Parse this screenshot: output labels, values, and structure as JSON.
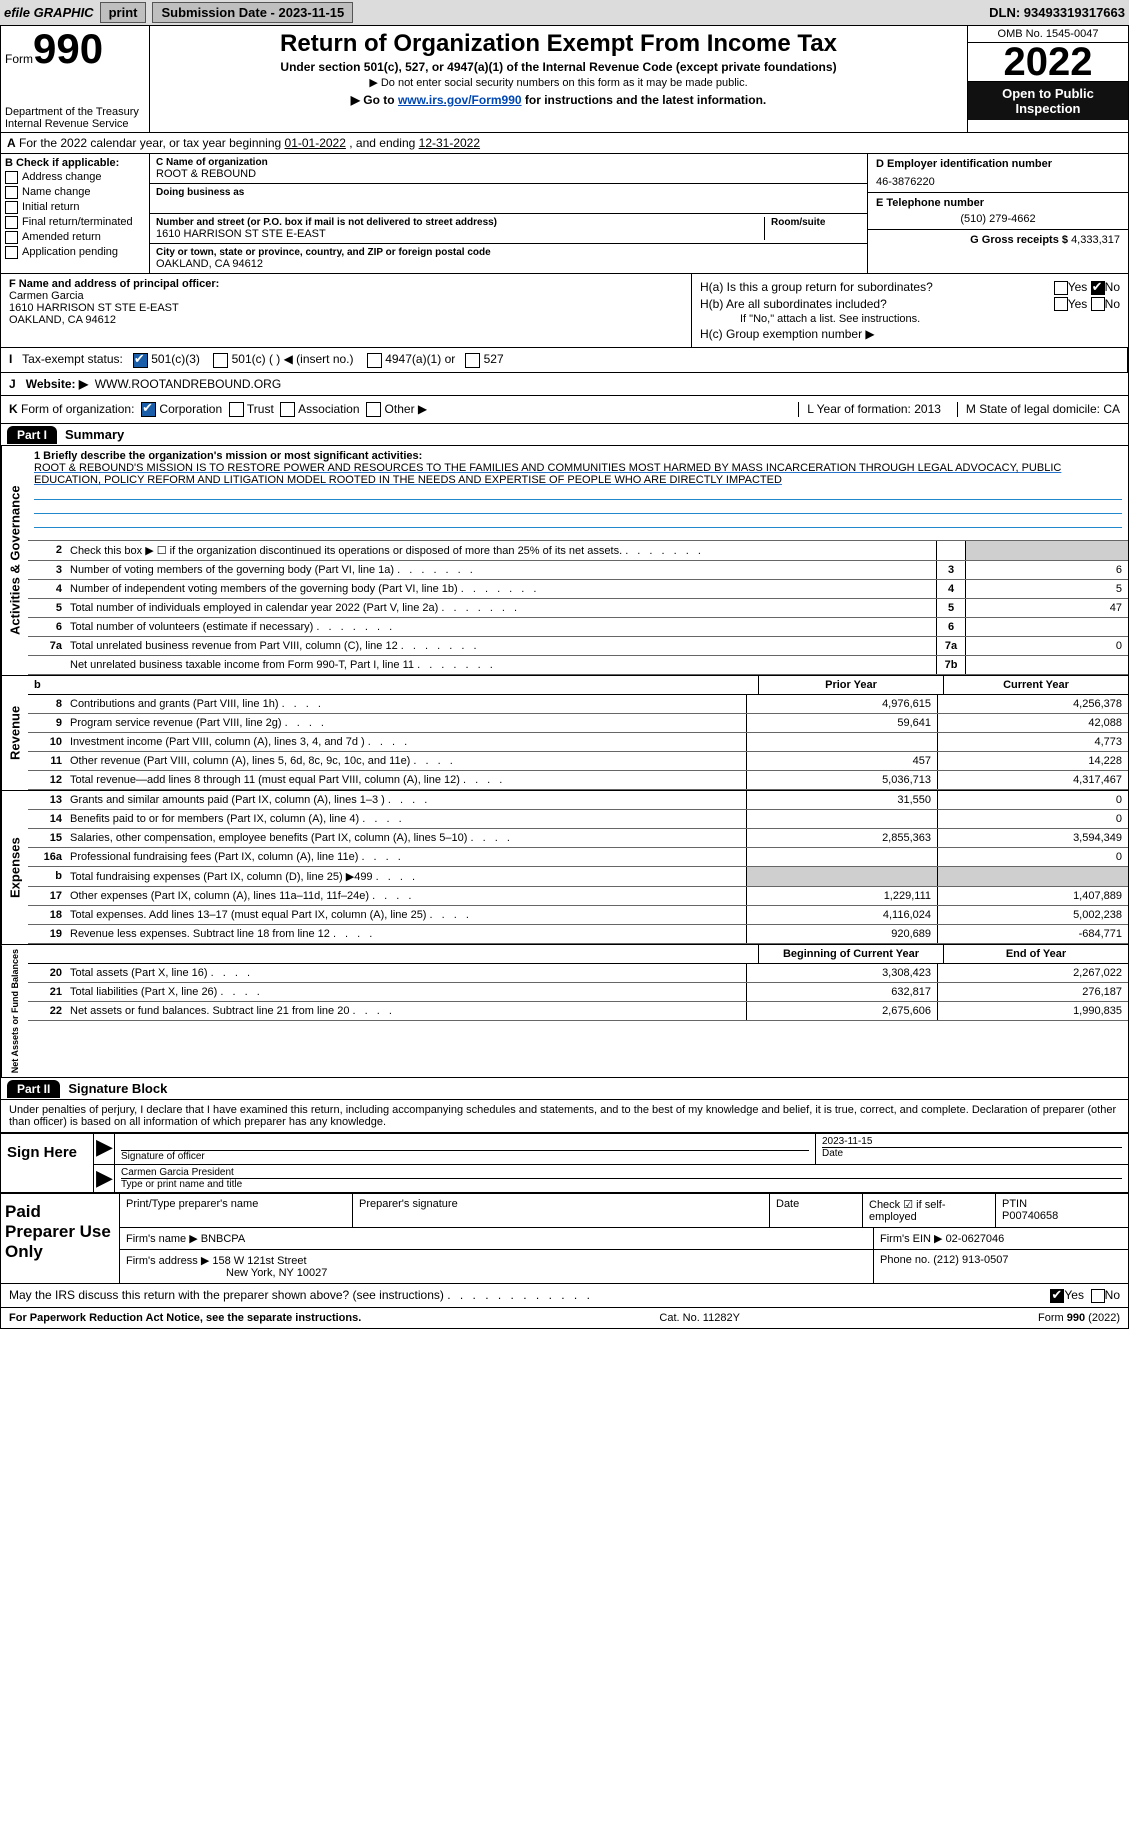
{
  "topbar": {
    "efile": "efile GRAPHIC",
    "print": "print",
    "subdate_label": "Submission Date - 2023-11-15",
    "dln": "DLN: 93493319317663"
  },
  "header": {
    "form_word": "Form",
    "form_no": "990",
    "dept": "Department of the Treasury",
    "irs": "Internal Revenue Service",
    "title": "Return of Organization Exempt From Income Tax",
    "sub": "Under section 501(c), 527, or 4947(a)(1) of the Internal Revenue Code (except private foundations)",
    "sub2": "Do not enter social security numbers on this form as it may be made public.",
    "sub3_pre": "Go to ",
    "sub3_link": "www.irs.gov/Form990",
    "sub3_post": " for instructions and the latest information.",
    "omb": "OMB No. 1545-0047",
    "year": "2022",
    "open": "Open to Public Inspection"
  },
  "rowA": {
    "text_pre": "For the 2022 calendar year, or tax year beginning ",
    "begin": "01-01-2022",
    "mid": " , and ending ",
    "end": "12-31-2022",
    "label": "A"
  },
  "colB": {
    "hdr": "B Check if applicable:",
    "items": [
      "Address change",
      "Name change",
      "Initial return",
      "Final return/terminated",
      "Amended return",
      "Application pending"
    ]
  },
  "colC": {
    "name_lbl": "C Name of organization",
    "name": "ROOT & REBOUND",
    "dba_lbl": "Doing business as",
    "addr_lbl": "Number and street (or P.O. box if mail is not delivered to street address)",
    "room_lbl": "Room/suite",
    "addr": "1610 HARRISON ST STE E-EAST",
    "city_lbl": "City or town, state or province, country, and ZIP or foreign postal code",
    "city": "OAKLAND, CA  94612"
  },
  "colDEF": {
    "d_lbl": "D Employer identification number",
    "d_val": "46-3876220",
    "e_lbl": "E Telephone number",
    "e_val": "(510) 279-4662",
    "g_lbl": "G Gross receipts $",
    "g_val": "4,333,317"
  },
  "rowF": {
    "lbl": "F Name and address of principal officer:",
    "name": "Carmen Garcia",
    "addr1": "1610 HARRISON ST STE E-EAST",
    "addr2": "OAKLAND, CA  94612"
  },
  "rowH": {
    "a": "H(a)  Is this a group return for subordinates?",
    "b": "H(b)  Are all subordinates included?",
    "bnote": "If \"No,\" attach a list. See instructions.",
    "c": "H(c)  Group exemption number ▶",
    "yes": "Yes",
    "no": "No"
  },
  "rowI": {
    "lbl": "Tax-exempt status:",
    "opts": [
      "501(c)(3)",
      "501(c) (   ) ◀ (insert no.)",
      "4947(a)(1) or",
      "527"
    ],
    "i": "I"
  },
  "rowJ": {
    "lbl": "Website: ▶",
    "val": "WWW.ROOTANDREBOUND.ORG",
    "j": "J"
  },
  "rowK": {
    "k": "K",
    "lbl": "Form of organization:",
    "opts": [
      "Corporation",
      "Trust",
      "Association",
      "Other ▶"
    ],
    "l": "L Year of formation: 2013",
    "m": "M State of legal domicile: CA"
  },
  "partI": {
    "tag": "Part I",
    "label": "Summary"
  },
  "mission": {
    "q": "1  Briefly describe the organization's mission or most significant activities:",
    "text": "ROOT & REBOUND'S MISSION IS TO RESTORE POWER AND RESOURCES TO THE FAMILIES AND COMMUNITIES MOST HARMED BY MASS INCARCERATION THROUGH LEGAL ADVOCACY, PUBLIC EDUCATION, POLICY REFORM AND LITIGATION MODEL ROOTED IN THE NEEDS AND EXPERTISE OF PEOPLE WHO ARE DIRECTLY IMPACTED"
  },
  "govRows": [
    {
      "n": "2",
      "t": "Check this box ▶ ☐ if the organization discontinued its operations or disposed of more than 25% of its net assets.",
      "cell": "",
      "box": ""
    },
    {
      "n": "3",
      "t": "Number of voting members of the governing body (Part VI, line 1a)",
      "cell": "3",
      "v": "6"
    },
    {
      "n": "4",
      "t": "Number of independent voting members of the governing body (Part VI, line 1b)",
      "cell": "4",
      "v": "5"
    },
    {
      "n": "5",
      "t": "Total number of individuals employed in calendar year 2022 (Part V, line 2a)",
      "cell": "5",
      "v": "47"
    },
    {
      "n": "6",
      "t": "Total number of volunteers (estimate if necessary)",
      "cell": "6",
      "v": ""
    },
    {
      "n": "7a",
      "t": "Total unrelated business revenue from Part VIII, column (C), line 12",
      "cell": "7a",
      "v": "0"
    },
    {
      "n": "",
      "t": "Net unrelated business taxable income from Form 990-T, Part I, line 11",
      "cell": "7b",
      "v": ""
    }
  ],
  "colHdrs": {
    "b": "b",
    "py": "Prior Year",
    "cy": "Current Year"
  },
  "revRows": [
    {
      "n": "8",
      "t": "Contributions and grants (Part VIII, line 1h)",
      "v1": "4,976,615",
      "v2": "4,256,378"
    },
    {
      "n": "9",
      "t": "Program service revenue (Part VIII, line 2g)",
      "v1": "59,641",
      "v2": "42,088"
    },
    {
      "n": "10",
      "t": "Investment income (Part VIII, column (A), lines 3, 4, and 7d )",
      "v1": "",
      "v2": "4,773"
    },
    {
      "n": "11",
      "t": "Other revenue (Part VIII, column (A), lines 5, 6d, 8c, 9c, 10c, and 11e)",
      "v1": "457",
      "v2": "14,228"
    },
    {
      "n": "12",
      "t": "Total revenue—add lines 8 through 11 (must equal Part VIII, column (A), line 12)",
      "v1": "5,036,713",
      "v2": "4,317,467"
    }
  ],
  "expRows": [
    {
      "n": "13",
      "t": "Grants and similar amounts paid (Part IX, column (A), lines 1–3 )",
      "v1": "31,550",
      "v2": "0"
    },
    {
      "n": "14",
      "t": "Benefits paid to or for members (Part IX, column (A), line 4)",
      "v1": "",
      "v2": "0"
    },
    {
      "n": "15",
      "t": "Salaries, other compensation, employee benefits (Part IX, column (A), lines 5–10)",
      "v1": "2,855,363",
      "v2": "3,594,349"
    },
    {
      "n": "16a",
      "t": "Professional fundraising fees (Part IX, column (A), line 11e)",
      "v1": "",
      "v2": "0"
    },
    {
      "n": "b",
      "t": "Total fundraising expenses (Part IX, column (D), line 25) ▶499",
      "v1": "",
      "v2": "",
      "shade": true
    },
    {
      "n": "17",
      "t": "Other expenses (Part IX, column (A), lines 11a–11d, 11f–24e)",
      "v1": "1,229,111",
      "v2": "1,407,889"
    },
    {
      "n": "18",
      "t": "Total expenses. Add lines 13–17 (must equal Part IX, column (A), line 25)",
      "v1": "4,116,024",
      "v2": "5,002,238"
    },
    {
      "n": "19",
      "t": "Revenue less expenses. Subtract line 18 from line 12",
      "v1": "920,689",
      "v2": "-684,771"
    }
  ],
  "netHdrs": {
    "b": "Beginning of Current Year",
    "e": "End of Year"
  },
  "netRows": [
    {
      "n": "20",
      "t": "Total assets (Part X, line 16)",
      "v1": "3,308,423",
      "v2": "2,267,022"
    },
    {
      "n": "21",
      "t": "Total liabilities (Part X, line 26)",
      "v1": "632,817",
      "v2": "276,187"
    },
    {
      "n": "22",
      "t": "Net assets or fund balances. Subtract line 21 from line 20",
      "v1": "2,675,606",
      "v2": "1,990,835"
    }
  ],
  "sideTabs": {
    "gov": "Activities & Governance",
    "rev": "Revenue",
    "exp": "Expenses",
    "net": "Net Assets or Fund Balances"
  },
  "partII": {
    "tag": "Part II",
    "label": "Signature Block"
  },
  "sigDecl": "Under penalties of perjury, I declare that I have examined this return, including accompanying schedules and statements, and to the best of my knowledge and belief, it is true, correct, and complete. Declaration of preparer (other than officer) is based on all information of which preparer has any knowledge.",
  "sign": {
    "here": "Sign Here",
    "sig_of": "Signature of officer",
    "date": "2023-11-15",
    "date_lbl": "Date",
    "typed": "Carmen Garcia  President",
    "typed_lbl": "Type or print name and title"
  },
  "paid": {
    "hdr": "Paid Preparer Use Only",
    "ppn": "Print/Type preparer's name",
    "psig": "Preparer's signature",
    "pdate": "Date",
    "chk": "Check ☑ if self-employed",
    "ptin_lbl": "PTIN",
    "ptin": "P00740658",
    "firm_lbl": "Firm's name   ▶",
    "firm": "BNBCPA",
    "ein_lbl": "Firm's EIN ▶",
    "ein": "02-0627046",
    "addr_lbl": "Firm's address ▶",
    "addr1": "158 W 121st Street",
    "addr2": "New York, NY  10027",
    "phone_lbl": "Phone no.",
    "phone": "(212) 913-0507"
  },
  "may": {
    "q": "May the IRS discuss this return with the preparer shown above? (see instructions)",
    "yes": "Yes",
    "no": "No"
  },
  "footer": {
    "l": "For Paperwork Reduction Act Notice, see the separate instructions.",
    "m": "Cat. No. 11282Y",
    "r": "Form 990 (2022)"
  },
  "colors": {
    "link": "#0047b3",
    "black": "#000000",
    "grey": "#cfcfcf"
  }
}
